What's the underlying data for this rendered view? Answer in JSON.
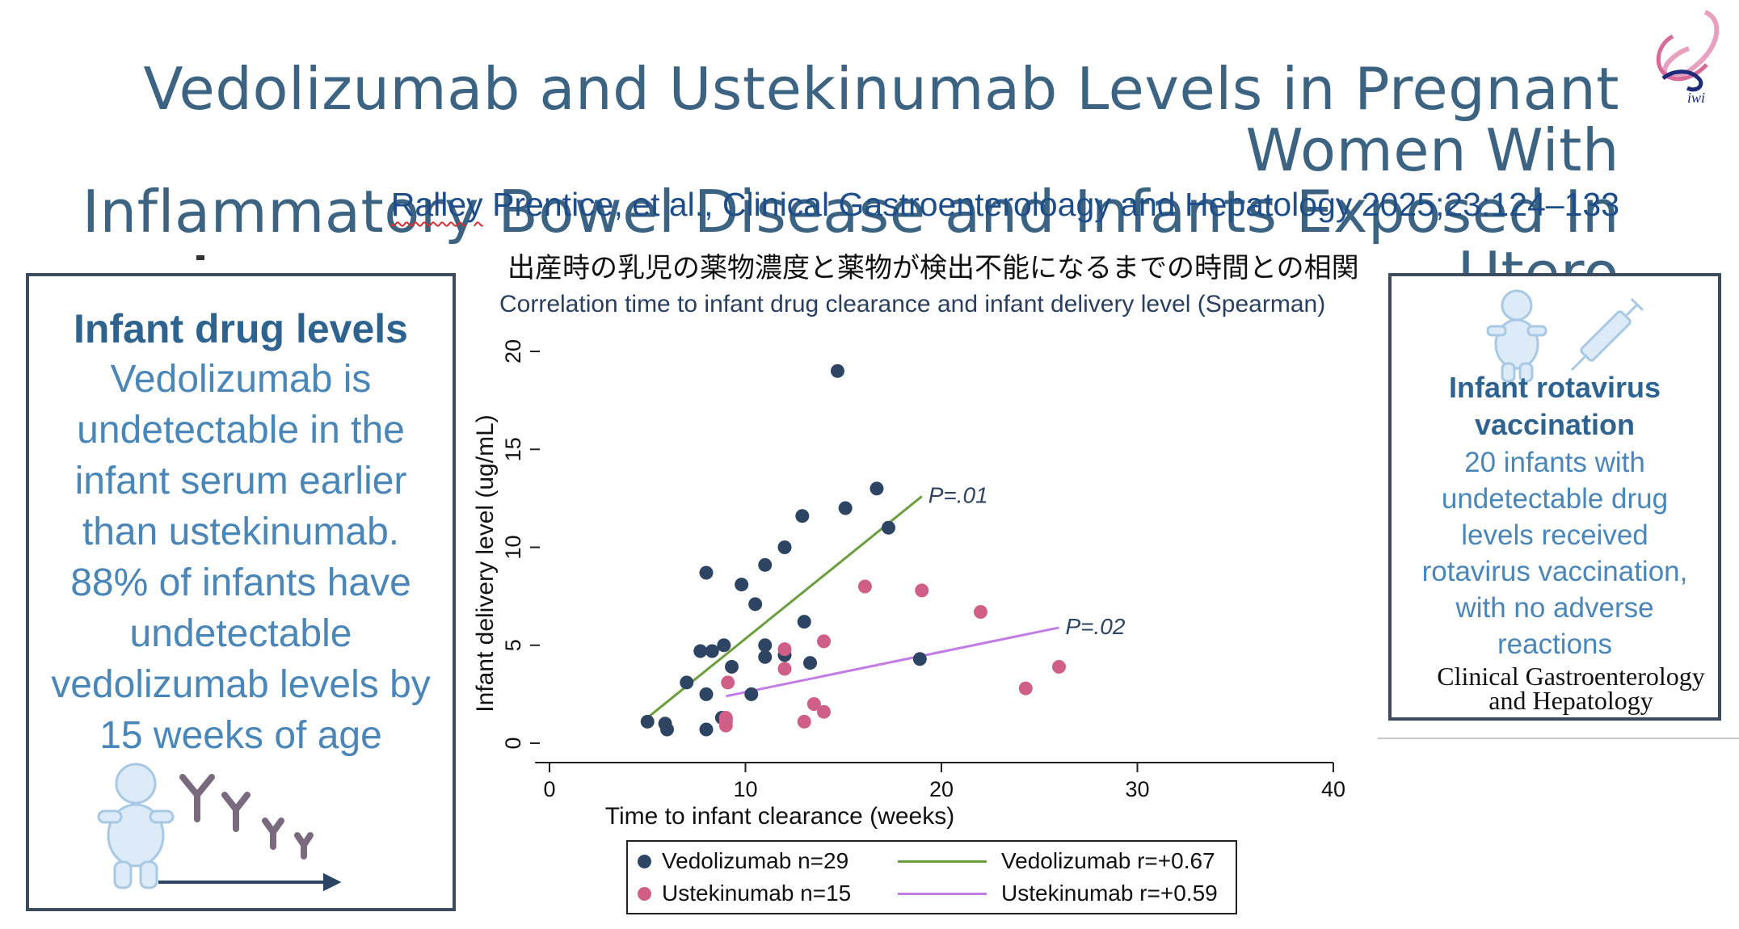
{
  "header": {
    "title_line1": "Vedolizumab and Ustekinumab Levels in Pregnant Women With",
    "title_line2": "Inflammatory Bowel Disease and Infants Exposed In Utero",
    "citation_author": "Ralley",
    "citation_rest": " Prentice, et al., Clinical Gastroenteroloagy and Hepatology 2025;23:124–133"
  },
  "logo": {
    "text": "iwi"
  },
  "left_panel": {
    "heading": "Infant drug levels",
    "body_lines": [
      "Vedolizumab is",
      "undetectable in the",
      "infant serum earlier",
      "than ustekinumab.",
      "88% of infants have",
      "undetectable",
      "vedolizumab levels by",
      "15 weeks of age"
    ]
  },
  "right_panel": {
    "heading_line1": "Infant rotavirus",
    "heading_line2": "vaccination",
    "body_lines": [
      "20 infants with",
      "undetectable drug",
      "levels received",
      "rotavirus vaccination,",
      "with no adverse",
      "reactions"
    ],
    "journal_line1": "Clinical Gastroenterology",
    "journal_line2": "and Hepatology"
  },
  "chart_titles": {
    "japanese": "出産時の乳児の薬物濃度と薬物が検出不能になるまでの時間との相関",
    "english": "Correlation time to infant drug clearance and infant delivery level (Spearman)"
  },
  "chart_data": {
    "type": "scatter",
    "xlabel": "Time to infant clearance (weeks)",
    "ylabel": "Infant delivery level (ug/mL)",
    "xlim": [
      0,
      40
    ],
    "ylim": [
      0,
      20
    ],
    "xticks": [
      0,
      10,
      20,
      30,
      40
    ],
    "yticks": [
      0,
      5,
      10,
      15,
      20
    ],
    "grid": false,
    "legend_position": "bottom",
    "series": [
      {
        "name": "Vedolizumab n=29",
        "color": "#2e4463",
        "points": [
          [
            5,
            1.1
          ],
          [
            5.9,
            1.0
          ],
          [
            6,
            0.7
          ],
          [
            7,
            3.1
          ],
          [
            7.7,
            4.7
          ],
          [
            8,
            8.7
          ],
          [
            8,
            2.5
          ],
          [
            8,
            0.7
          ],
          [
            8.3,
            4.7
          ],
          [
            8.8,
            1.3
          ],
          [
            8.9,
            5.0
          ],
          [
            9.3,
            3.9
          ],
          [
            9.8,
            8.1
          ],
          [
            10.3,
            2.5
          ],
          [
            10.5,
            7.1
          ],
          [
            11,
            9.1
          ],
          [
            11,
            5.0
          ],
          [
            11,
            4.4
          ],
          [
            12,
            10.0
          ],
          [
            12,
            4.5
          ],
          [
            12.9,
            11.6
          ],
          [
            13,
            6.2
          ],
          [
            13.3,
            4.1
          ],
          [
            14.7,
            19.0
          ],
          [
            15.1,
            12.0
          ],
          [
            16.7,
            13.0
          ],
          [
            17.3,
            11.0
          ],
          [
            18.9,
            4.3
          ],
          [
            9,
            1.2
          ]
        ]
      },
      {
        "name": "Ustekinumab n=15",
        "color": "#cf5f86",
        "points": [
          [
            9,
            1.3
          ],
          [
            9,
            0.9
          ],
          [
            9.1,
            3.1
          ],
          [
            12,
            4.8
          ],
          [
            12,
            3.8
          ],
          [
            13,
            1.1
          ],
          [
            13.5,
            2.0
          ],
          [
            14,
            1.6
          ],
          [
            14,
            5.2
          ],
          [
            16.1,
            8.0
          ],
          [
            19,
            7.8
          ],
          [
            22,
            6.7
          ],
          [
            24.3,
            2.8
          ],
          [
            26,
            3.9
          ],
          [
            9,
            1.1
          ]
        ]
      }
    ],
    "fit_lines": [
      {
        "name": "Vedolizumab r=+0.67",
        "color": "#6b9e3e",
        "from": [
          5,
          1.3
        ],
        "to": [
          19,
          12.6
        ],
        "annotation": "P=.01"
      },
      {
        "name": "Ustekinumab r=+0.59",
        "color": "#c27ce6",
        "from": [
          9,
          2.4
        ],
        "to": [
          26,
          5.9
        ],
        "annotation": "P=.02"
      }
    ]
  }
}
